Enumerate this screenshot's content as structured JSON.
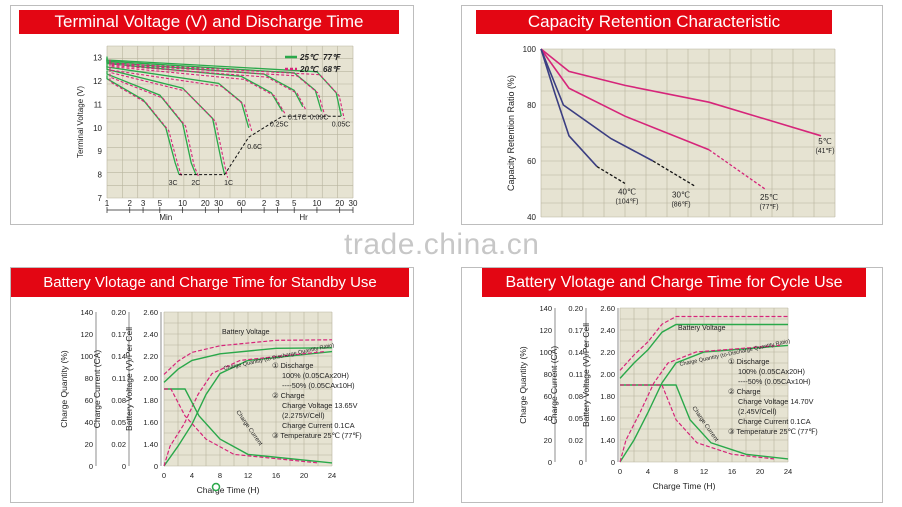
{
  "watermark": "trade.china.cn",
  "colors": {
    "banner": "#e30613",
    "plot_bg": "#e6e3d2",
    "green": "#2aa84a",
    "magenta": "#d6257a",
    "navy": "#3b3e82",
    "black": "#111111"
  },
  "panels": {
    "terminal": {
      "title": "Terminal Voltage (V) and Discharge Time",
      "ylabel": "Terminal Voltage (V)",
      "y_ticks": [
        "13",
        "12",
        "11",
        "10",
        "9",
        "8",
        "7"
      ],
      "x_ticks": [
        "1",
        "2",
        "3",
        "5",
        "10",
        "20",
        "30",
        "60",
        "2",
        "3",
        "5",
        "10",
        "20",
        "30"
      ],
      "x_unit_min": "Min",
      "x_unit_hr": "Hr",
      "legend": [
        {
          "temp_c": "25℃",
          "temp_f": "77℉"
        },
        {
          "temp_c": "20℃",
          "temp_f": "68℉"
        }
      ],
      "curve_labels": [
        "3C",
        "2C",
        "1C",
        "0.6C",
        "0.25C",
        "0.17C",
        "0.09C",
        "0.05C"
      ]
    },
    "capacity": {
      "title": "Capacity Retention Characteristic",
      "ylabel": "Capacity Retention Ratio (%)",
      "y_ticks": [
        "100",
        "80",
        "60",
        "40"
      ],
      "series_labels": [
        {
          "c": "5℃",
          "f": "(41℉)"
        },
        {
          "c": "25℃",
          "f": "(77℉)"
        },
        {
          "c": "30℃",
          "f": "(86℉)"
        },
        {
          "c": "40℃",
          "f": "(104℉)"
        }
      ]
    },
    "standby": {
      "title": "Battery Vlotage and Charge Time for Standby Use",
      "axis_quantity_label": "Charge Quantity (%)",
      "axis_current_label": "Charge Current (CA)",
      "axis_voltage_label": "Battery Voltage (V)/Per Cell",
      "quantity_ticks": [
        "140",
        "120",
        "100",
        "80",
        "60",
        "40",
        "20",
        "0"
      ],
      "current_ticks": [
        "0.20",
        "0.17",
        "0.14",
        "0.11",
        "0.08",
        "0.05",
        "0.02",
        "0"
      ],
      "voltage_ticks": [
        "2.60",
        "2.40",
        "2.20",
        "2.00",
        "1.80",
        "1.60",
        "1.40",
        "0"
      ],
      "x_ticks": [
        "0",
        "4",
        "8",
        "12",
        "16",
        "20",
        "24"
      ],
      "xlabel": "Charge Time (H)",
      "label_battery_voltage": "Battery Voltage",
      "label_charge_quantity": "Charge Quantity (to-Discharge Quantity Ratio)",
      "label_charge_current": "Charge Current",
      "notes": [
        "① Discharge",
        "100% (0.05CAx20H)",
        "----50% (0.05CAx10H)",
        "② Charge",
        "Charge Voltage 13.65V",
        "(2.275V/Cell)",
        "Charge Current 0.1CA",
        "③ Temperature 25℃ (77℉)"
      ]
    },
    "cycle": {
      "title": "Battery Vlotage and Charge Time for Cycle Use",
      "axis_quantity_label": "Charge Quantity (%)",
      "axis_current_label": "Charge Current (CA)",
      "axis_voltage_label": "Battery Voltage (V)/Per Cell",
      "quantity_ticks": [
        "140",
        "120",
        "100",
        "80",
        "60",
        "40",
        "20",
        "0"
      ],
      "current_ticks": [
        "0.20",
        "0.17",
        "0.14",
        "0.11",
        "0.08",
        "0.05",
        "0.02",
        "0"
      ],
      "voltage_ticks": [
        "2.60",
        "2.40",
        "2.20",
        "2.00",
        "1.80",
        "1.60",
        "1.40",
        "0"
      ],
      "x_ticks": [
        "0",
        "4",
        "8",
        "12",
        "16",
        "20",
        "24"
      ],
      "xlabel": "Charge Time (H)",
      "label_battery_voltage": "Battery Voltage",
      "label_charge_quantity": "Charge Quantity (to-Discharge Quantity Ratio)",
      "label_charge_current": "Charge Current",
      "notes": [
        "① Discharge",
        "100% (0.05CAx20H)",
        "----50% (0.05CAx10H)",
        "② Charge",
        "Charge Voltage 14.70V",
        "(2.45V/Cell)",
        "Charge Current 0.1CA",
        "③ Temperature 25℃ (77℉)"
      ]
    }
  },
  "chart_data": [
    {
      "type": "line",
      "title": "Terminal Voltage (V) and Discharge Time",
      "ylabel": "Terminal Voltage (V)",
      "ylim": [
        7,
        13.5
      ],
      "x_scale": "log time, minutes then hours",
      "series": [
        {
          "name": "3C",
          "points": [
            [
              1,
              12.1
            ],
            [
              3,
              11.2
            ],
            [
              6,
              10.0
            ],
            [
              8,
              8.5
            ],
            [
              9,
              8.0
            ]
          ]
        },
        {
          "name": "2C",
          "points": [
            [
              1,
              12.3
            ],
            [
              5,
              11.4
            ],
            [
              10,
              10.2
            ],
            [
              13,
              8.5
            ],
            [
              15,
              8.0
            ]
          ]
        },
        {
          "name": "1C",
          "points": [
            [
              1,
              12.5
            ],
            [
              10,
              11.7
            ],
            [
              25,
              10.4
            ],
            [
              33,
              8.5
            ],
            [
              36,
              8.0
            ]
          ]
        },
        {
          "name": "0.6C",
          "points": [
            [
              1,
              12.6
            ],
            [
              30,
              11.9
            ],
            [
              60,
              11.1
            ],
            [
              75,
              10.0
            ]
          ]
        },
        {
          "name": "0.25C",
          "points": [
            [
              1,
              12.75
            ],
            [
              60,
              12.2
            ],
            [
              150,
              11.5
            ],
            [
              210,
              10.7
            ]
          ]
        },
        {
          "name": "0.17C",
          "points": [
            [
              1,
              12.8
            ],
            [
              120,
              12.3
            ],
            [
              300,
              11.6
            ],
            [
              390,
              10.9
            ]
          ]
        },
        {
          "name": "0.09C",
          "points": [
            [
              1,
              12.85
            ],
            [
              300,
              12.35
            ],
            [
              570,
              11.6
            ],
            [
              690,
              10.7
            ]
          ]
        },
        {
          "name": "0.05C",
          "points": [
            [
              1,
              12.9
            ],
            [
              600,
              12.4
            ],
            [
              1080,
              11.5
            ],
            [
              1260,
              10.5
            ]
          ]
        }
      ],
      "legend": [
        "25℃ 77℉ (solid green)",
        "20℃ 68℉ (dashed magenta)"
      ]
    },
    {
      "type": "line",
      "title": "Capacity Retention Characteristic",
      "ylabel": "Capacity Retention Ratio (%)",
      "ylim": [
        40,
        100
      ],
      "x_range": [
        0,
        1
      ],
      "series": [
        {
          "name": "5℃ (41℉)",
          "points": [
            [
              0,
              100
            ],
            [
              0.1,
              92
            ],
            [
              0.3,
              87
            ],
            [
              0.6,
              81
            ],
            [
              1.0,
              69
            ]
          ]
        },
        {
          "name": "25℃ (77℉)",
          "points": [
            [
              0,
              100
            ],
            [
              0.1,
              86
            ],
            [
              0.3,
              76
            ],
            [
              0.6,
              64
            ],
            [
              0.8,
              50
            ]
          ]
        },
        {
          "name": "30℃ (86℉)",
          "points": [
            [
              0,
              100
            ],
            [
              0.08,
              80
            ],
            [
              0.25,
              68
            ],
            [
              0.4,
              60
            ],
            [
              0.55,
              51
            ]
          ]
        },
        {
          "name": "40℃ (104℉)",
          "points": [
            [
              0,
              100
            ],
            [
              0.05,
              84
            ],
            [
              0.1,
              69
            ],
            [
              0.2,
              58
            ],
            [
              0.3,
              52
            ]
          ]
        }
      ]
    },
    {
      "type": "line",
      "title": "Battery Vlotage and Charge Time for Standby Use",
      "xlabel": "Charge Time (H)",
      "xlim": [
        0,
        24
      ],
      "series": [
        {
          "name": "Battery Voltage",
          "unit": "V/cell",
          "points": [
            [
              0,
              1.96
            ],
            [
              2,
              2.08
            ],
            [
              4,
              2.16
            ],
            [
              8,
              2.22
            ],
            [
              16,
              2.27
            ],
            [
              24,
              2.275
            ]
          ]
        },
        {
          "name": "Charge Quantity",
          "unit": "%",
          "points": [
            [
              0,
              0
            ],
            [
              2,
              18
            ],
            [
              4,
              38
            ],
            [
              6,
              65
            ],
            [
              8,
              84
            ],
            [
              12,
              96
            ],
            [
              24,
              104
            ]
          ]
        },
        {
          "name": "Charge Current",
          "unit": "CA",
          "points": [
            [
              0,
              0.1
            ],
            [
              3,
              0.1
            ],
            [
              5,
              0.065
            ],
            [
              8,
              0.035
            ],
            [
              12,
              0.015
            ],
            [
              24,
              0.004
            ]
          ]
        }
      ]
    },
    {
      "type": "line",
      "title": "Battery Vlotage and Charge Time for Cycle Use",
      "xlabel": "Charge Time (H)",
      "xlim": [
        0,
        24
      ],
      "series": [
        {
          "name": "Battery Voltage",
          "unit": "V/cell",
          "points": [
            [
              0,
              1.96
            ],
            [
              2,
              2.1
            ],
            [
              4,
              2.22
            ],
            [
              6,
              2.38
            ],
            [
              8,
              2.45
            ],
            [
              24,
              2.45
            ]
          ]
        },
        {
          "name": "Charge Quantity",
          "unit": "%",
          "points": [
            [
              0,
              0
            ],
            [
              2,
              20
            ],
            [
              4,
              45
            ],
            [
              6,
              72
            ],
            [
              8,
              90
            ],
            [
              12,
              100
            ],
            [
              24,
              106
            ]
          ]
        },
        {
          "name": "Charge Current",
          "unit": "CA",
          "points": [
            [
              0,
              0.1
            ],
            [
              8,
              0.1
            ],
            [
              10,
              0.055
            ],
            [
              13,
              0.025
            ],
            [
              18,
              0.01
            ],
            [
              24,
              0.004
            ]
          ]
        }
      ]
    }
  ]
}
